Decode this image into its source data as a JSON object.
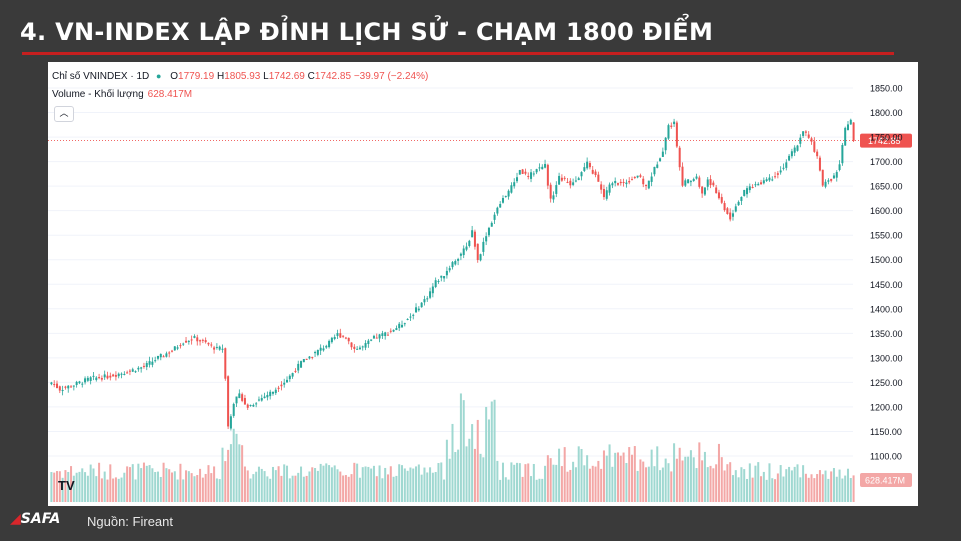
{
  "slide": {
    "title": "4. VN-INDEX LẬP ĐỈNH LỊCH SỬ - CHẠM 1800 ĐIỂM",
    "source": "Nguồn: Fireant",
    "logo_text": "SAFA"
  },
  "chart_header": {
    "symbol": "Chỉ số VNINDEX · 1D",
    "o_label": "O",
    "o": "1779.19",
    "h_label": "H",
    "h": "1805.93",
    "l_label": "L",
    "l": "1742.69",
    "c_label": "C",
    "c": "1742.85",
    "change": "−39.97 (−2.24%)",
    "volume_label": "Volume - Khối lượng",
    "volume_value": "628.417M",
    "collapse_icon": "chevron-up-icon",
    "watermark": "TV"
  },
  "colors": {
    "up": "#26a69a",
    "down": "#ef5350",
    "up_vol": "#9fd8d1",
    "down_vol": "#f3a7a6",
    "last_price_bg": "#ef5350",
    "grid": "#f0f3fa"
  },
  "chart_data": {
    "type": "candlestick",
    "y_axis_ticks": [
      "1850.00",
      "1800.00",
      "1750.00",
      "1700.00",
      "1650.00",
      "1600.00",
      "1550.00",
      "1500.00",
      "1450.00",
      "1400.00",
      "1350.00",
      "1300.00",
      "1250.00",
      "1200.00",
      "1150.00",
      "1100.00"
    ],
    "ylim": [
      1080,
      1870
    ],
    "last_price_label": "1742.85",
    "last_price": 1742.85,
    "last_volume_label": "628.417M",
    "close_path": [
      [
        0,
        1250
      ],
      [
        3,
        1236
      ],
      [
        8,
        1245
      ],
      [
        14,
        1258
      ],
      [
        20,
        1262
      ],
      [
        27,
        1272
      ],
      [
        33,
        1282
      ],
      [
        38,
        1300
      ],
      [
        43,
        1315
      ],
      [
        47,
        1333
      ],
      [
        51,
        1340
      ],
      [
        55,
        1330
      ],
      [
        59,
        1318
      ],
      [
        61,
        1320
      ],
      [
        62,
        1262
      ],
      [
        63,
        1160
      ],
      [
        65,
        1210
      ],
      [
        67,
        1225
      ],
      [
        70,
        1200
      ],
      [
        74,
        1215
      ],
      [
        79,
        1232
      ],
      [
        84,
        1256
      ],
      [
        89,
        1290
      ],
      [
        94,
        1310
      ],
      [
        99,
        1330
      ],
      [
        102,
        1348
      ],
      [
        105,
        1342
      ],
      [
        108,
        1318
      ],
      [
        111,
        1322
      ],
      [
        115,
        1340
      ],
      [
        120,
        1352
      ],
      [
        124,
        1365
      ],
      [
        128,
        1385
      ],
      [
        131,
        1405
      ],
      [
        134,
        1425
      ],
      [
        137,
        1455
      ],
      [
        140,
        1470
      ],
      [
        144,
        1500
      ],
      [
        148,
        1525
      ],
      [
        150,
        1560
      ],
      [
        152,
        1498
      ],
      [
        155,
        1552
      ],
      [
        158,
        1592
      ],
      [
        161,
        1625
      ],
      [
        164,
        1648
      ],
      [
        167,
        1682
      ],
      [
        170,
        1668
      ],
      [
        173,
        1685
      ],
      [
        176,
        1692
      ],
      [
        178,
        1620
      ],
      [
        181,
        1668
      ],
      [
        185,
        1655
      ],
      [
        188,
        1670
      ],
      [
        191,
        1695
      ],
      [
        194,
        1670
      ],
      [
        197,
        1628
      ],
      [
        200,
        1660
      ],
      [
        203,
        1655
      ],
      [
        206,
        1662
      ],
      [
        209,
        1672
      ],
      [
        212,
        1648
      ],
      [
        215,
        1685
      ],
      [
        218,
        1725
      ],
      [
        220,
        1772
      ],
      [
        222,
        1778
      ],
      [
        223,
        1732
      ],
      [
        225,
        1655
      ],
      [
        227,
        1660
      ],
      [
        230,
        1668
      ],
      [
        232,
        1632
      ],
      [
        234,
        1665
      ],
      [
        237,
        1638
      ],
      [
        240,
        1605
      ],
      [
        242,
        1586
      ],
      [
        245,
        1622
      ],
      [
        248,
        1645
      ],
      [
        251,
        1652
      ],
      [
        254,
        1662
      ],
      [
        257,
        1668
      ],
      [
        260,
        1682
      ],
      [
        263,
        1708
      ],
      [
        266,
        1735
      ],
      [
        268,
        1765
      ],
      [
        271,
        1738
      ],
      [
        273,
        1710
      ],
      [
        275,
        1650
      ],
      [
        277,
        1662
      ],
      [
        279,
        1668
      ],
      [
        281,
        1695
      ],
      [
        283,
        1765
      ],
      [
        285,
        1782
      ],
      [
        286,
        1742.85
      ]
    ]
  }
}
